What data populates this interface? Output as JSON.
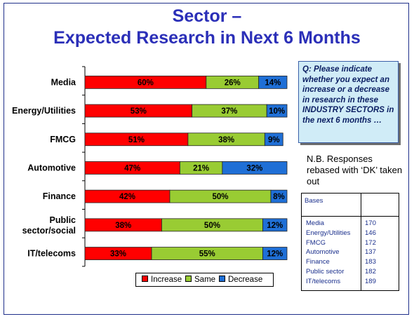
{
  "title": {
    "line1": "Sector –",
    "line2": "Expected Research in Next 6 Months"
  },
  "question": "Q: Please indicate whether you expect an increase or a decrease in research in these INDUSTRY SECTORS in the next 6 months …",
  "note": "N.B. Responses rebased with ‘DK’ taken out",
  "bases": {
    "heading": "Bases",
    "rows": [
      {
        "name": "Media",
        "value": "170"
      },
      {
        "name": "Energy/Utilities",
        "value": "146"
      },
      {
        "name": "FMCG",
        "value": "172"
      },
      {
        "name": "Automotive",
        "value": "137"
      },
      {
        "name": "Finance",
        "value": "183"
      },
      {
        "name": "Public sector",
        "value": "182"
      },
      {
        "name": "IT/telecoms",
        "value": "189"
      }
    ]
  },
  "chart_data": {
    "type": "bar",
    "orientation": "horizontal",
    "stacked": true,
    "categories": [
      "Media",
      "Energy/Utilities",
      "FMCG",
      "Automotive",
      "Finance",
      "Public sector/social",
      "IT/telecoms"
    ],
    "series": [
      {
        "name": "Increase",
        "color": "#ff0000",
        "values": [
          60,
          53,
          51,
          47,
          42,
          38,
          33
        ]
      },
      {
        "name": "Same",
        "color": "#99cc33",
        "values": [
          26,
          37,
          38,
          21,
          50,
          50,
          55
        ]
      },
      {
        "name": "Decrease",
        "color": "#1f6fd6",
        "values": [
          14,
          10,
          9,
          32,
          8,
          12,
          12
        ]
      }
    ],
    "value_suffix": "%",
    "xlim": [
      0,
      100
    ],
    "grid": false,
    "legend_position": "bottom"
  }
}
